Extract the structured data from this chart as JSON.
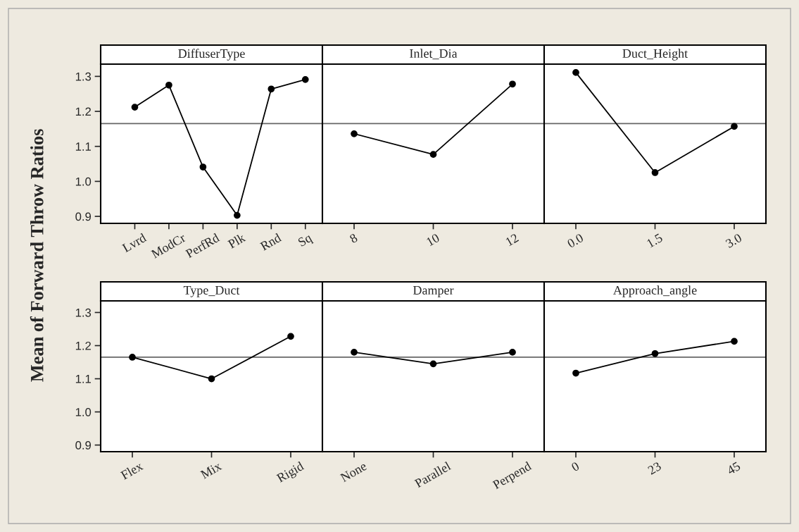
{
  "chart_data": [
    {
      "type": "line",
      "title": "DiffuserType",
      "ylabel": "Mean of Forward Throw Ratios",
      "categories": [
        "Lvrd",
        "ModCr",
        "PerfRd",
        "Plk",
        "Rnd",
        "Sq"
      ],
      "series": [
        {
          "color": "#000000",
          "values": [
            1.212,
            1.275,
            1.041,
            0.903,
            1.264,
            1.291
          ]
        }
      ],
      "ylim": [
        0.88,
        1.335
      ],
      "yticks": [
        {
          "value": 0.9,
          "label": "0.9"
        },
        {
          "value": 1.0,
          "label": "1.0"
        },
        {
          "value": 1.1,
          "label": "1.1"
        },
        {
          "value": 1.2,
          "label": "1.2"
        },
        {
          "value": 1.3,
          "label": "1.3"
        }
      ],
      "ref_lines": [
        {
          "axis": "y",
          "value": 1.165,
          "color": "#666666"
        }
      ],
      "marker": "circle",
      "grid": false
    },
    {
      "type": "line",
      "title": "Inlet_Dia",
      "categories": [
        "8",
        "10",
        "12"
      ],
      "series": [
        {
          "color": "#000000",
          "values": [
            1.136,
            1.077,
            1.278
          ]
        }
      ],
      "ylim": [
        0.88,
        1.335
      ],
      "ref_lines": [
        {
          "axis": "y",
          "value": 1.165,
          "color": "#666666"
        }
      ],
      "marker": "circle",
      "tick_labels": "x",
      "grid": false
    },
    {
      "type": "line",
      "title": "Duct_Height",
      "categories": [
        "0.0",
        "1.5",
        "3.0"
      ],
      "series": [
        {
          "color": "#000000",
          "values": [
            1.311,
            1.025,
            1.157
          ]
        }
      ],
      "ylim": [
        0.88,
        1.335
      ],
      "ref_lines": [
        {
          "axis": "y",
          "value": 1.165,
          "color": "#666666"
        }
      ],
      "marker": "circle",
      "tick_labels": "x",
      "grid": false
    },
    {
      "type": "line",
      "title": "Type_Duct",
      "categories": [
        "Flex",
        "Mix",
        "Rigid"
      ],
      "series": [
        {
          "color": "#000000",
          "values": [
            1.165,
            1.1,
            1.228
          ]
        }
      ],
      "ylim": [
        0.88,
        1.335
      ],
      "yticks": [
        {
          "value": 0.9,
          "label": "0.9"
        },
        {
          "value": 1.0,
          "label": "1.0"
        },
        {
          "value": 1.1,
          "label": "1.1"
        },
        {
          "value": 1.2,
          "label": "1.2"
        },
        {
          "value": 1.3,
          "label": "1.3"
        }
      ],
      "ref_lines": [
        {
          "axis": "y",
          "value": 1.165,
          "color": "#666666"
        }
      ],
      "marker": "circle",
      "grid": false
    },
    {
      "type": "line",
      "title": "Damper",
      "categories": [
        "None",
        "Parallel",
        "Perpend"
      ],
      "series": [
        {
          "color": "#000000",
          "values": [
            1.18,
            1.145,
            1.18
          ]
        }
      ],
      "ylim": [
        0.88,
        1.335
      ],
      "ref_lines": [
        {
          "axis": "y",
          "value": 1.165,
          "color": "#666666"
        }
      ],
      "marker": "circle",
      "tick_labels": "x",
      "grid": false
    },
    {
      "type": "line",
      "title": "Approach_angle",
      "categories": [
        "0",
        "23",
        "45"
      ],
      "series": [
        {
          "color": "#000000",
          "values": [
            1.117,
            1.176,
            1.213
          ]
        }
      ],
      "ylim": [
        0.88,
        1.335
      ],
      "ref_lines": [
        {
          "axis": "y",
          "value": 1.165,
          "color": "#666666"
        }
      ],
      "marker": "circle",
      "tick_labels": "x",
      "grid": false
    }
  ]
}
